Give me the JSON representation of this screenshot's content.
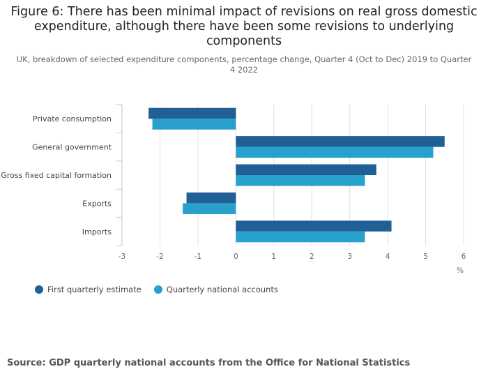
{
  "title": "Figure 6: There has been minimal impact of revisions on real gross domestic expenditure, although there have been some revisions to underlying components",
  "subtitle": "UK, breakdown of selected expenditure components, percentage change, Quarter 4 (Oct to Dec) 2019 to Quarter 4 2022",
  "source": "Source: GDP quarterly national accounts from the Office for National Statistics",
  "colors": {
    "first": "#206095",
    "quarterly": "#27a0cc",
    "grid": "#e0e0e0",
    "axis": "#bfc7de"
  },
  "chart_data": {
    "type": "bar",
    "orientation": "horizontal",
    "categories": [
      "Private consumption",
      "General government",
      "Gross fixed capital formation",
      "Exports",
      "Imports"
    ],
    "series": [
      {
        "name": "First quarterly estimate",
        "values": [
          -2.3,
          5.5,
          3.7,
          -1.3,
          4.1
        ]
      },
      {
        "name": "Quarterly national accounts",
        "values": [
          -2.2,
          5.2,
          3.4,
          -1.4,
          3.4
        ]
      }
    ],
    "xlim": [
      -3,
      6
    ],
    "xticks": [
      "-3",
      "-2",
      "-1",
      "0",
      "1",
      "2",
      "3",
      "4",
      "5",
      "6"
    ],
    "xlabel": "%",
    "legend_position": "bottom-left",
    "grid": true
  }
}
